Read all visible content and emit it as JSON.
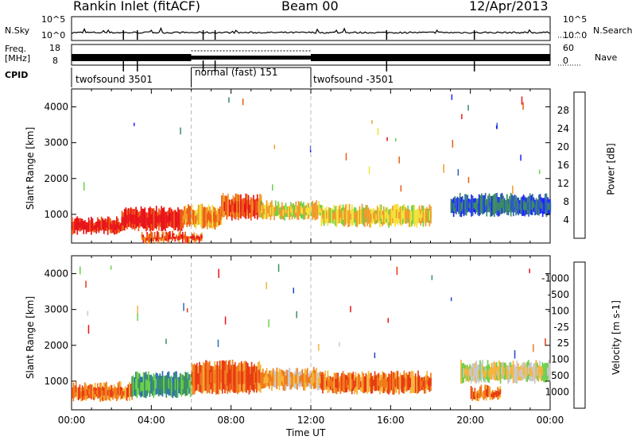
{
  "header": {
    "station": "Rankin Inlet (fitACF)",
    "beam": "Beam 00",
    "date": "12/Apr/2013"
  },
  "params": {
    "nsky_label": "N.Sky",
    "nsky_ticks": [
      "10^5",
      "10^0"
    ],
    "nsearch_label": "N.Search",
    "nsearch_ticks": [
      "10^5",
      "10^0"
    ],
    "freq_label": "Freq.",
    "freq_unit": "[MHz]",
    "freq_ticks": [
      "18",
      "8"
    ],
    "nave_label": "Nave",
    "nave_ticks": [
      "60",
      "0"
    ],
    "cpid_label": "CPID",
    "cpid_segments": [
      {
        "label": "twofsound 3501",
        "start_hour": 0,
        "end_hour": 6
      },
      {
        "label": "normal (fast) 151",
        "start_hour": 6,
        "end_hour": 12
      },
      {
        "label": "twofsound -3501",
        "start_hour": 12,
        "end_hour": 24
      }
    ]
  },
  "chart_data": [
    {
      "type": "heatmap",
      "name": "power",
      "ylabel": "Slant Range [km]",
      "yticks": [
        1000,
        2000,
        3000,
        4000
      ],
      "ylim": [
        200,
        4500
      ],
      "xlim": [
        0,
        24
      ],
      "colorbar_label": "Power [dB]",
      "colorbar_ticks": [
        "4",
        "8",
        "12",
        "16",
        "20",
        "24",
        "28"
      ],
      "colorbar_colors": [
        "#1e22ff",
        "#2d5dbf",
        "#3a8c62",
        "#6ad04a",
        "#f2e23a",
        "#f09a2a",
        "#ee5a14",
        "#e8141a"
      ],
      "bands": [
        {
          "x0": 0.0,
          "x1": 2.5,
          "r0": 500,
          "r1": 850,
          "level": 7
        },
        {
          "x0": 2.5,
          "x1": 5.5,
          "r0": 600,
          "r1": 1150,
          "level": 7
        },
        {
          "x0": 5.5,
          "x1": 7.5,
          "r0": 650,
          "r1": 1200,
          "level": 5
        },
        {
          "x0": 7.5,
          "x1": 9.5,
          "r0": 900,
          "r1": 1500,
          "level": 6
        },
        {
          "x0": 9.5,
          "x1": 12.5,
          "r0": 900,
          "r1": 1300,
          "level": 4
        },
        {
          "x0": 12.5,
          "x1": 18.0,
          "r0": 700,
          "r1": 1200,
          "level": 4
        },
        {
          "x0": 3.5,
          "x1": 6.5,
          "r0": 250,
          "r1": 450,
          "level": 6
        },
        {
          "x0": 19.0,
          "x1": 24.0,
          "r0": 1000,
          "r1": 1500,
          "level": 1
        }
      ]
    },
    {
      "type": "heatmap",
      "name": "velocity",
      "ylabel": "Slant Range [km]",
      "yticks": [
        1000,
        2000,
        3000,
        4000
      ],
      "ylim": [
        200,
        4500
      ],
      "xlim": [
        0,
        24
      ],
      "colorbar_label": "Velocity [m s-1]",
      "colorbar_ticks": [
        "1000",
        "500",
        "100",
        "25",
        "-25",
        "-100",
        "-500",
        "-1000"
      ],
      "colorbar_colors": [
        "#2244cc",
        "#2d6fb0",
        "#3a9060",
        "#6ad04a",
        "#c8c8c8",
        "#f5b43a",
        "#f07a1a",
        "#e83a12",
        "#e8141a"
      ],
      "bands": [
        {
          "x0": 0.0,
          "x1": 3.0,
          "r0": 500,
          "r1": 900,
          "level": 6
        },
        {
          "x0": 3.0,
          "x1": 6.0,
          "r0": 600,
          "r1": 1200,
          "level": 2
        },
        {
          "x0": 6.0,
          "x1": 9.5,
          "r0": 700,
          "r1": 1500,
          "level": 6
        },
        {
          "x0": 9.5,
          "x1": 12.5,
          "r0": 800,
          "r1": 1300,
          "level": 5
        },
        {
          "x0": 12.5,
          "x1": 18.0,
          "r0": 700,
          "r1": 1200,
          "level": 6
        },
        {
          "x0": 19.5,
          "x1": 24.0,
          "r0": 1000,
          "r1": 1500,
          "level": 4
        },
        {
          "x0": 20.0,
          "x1": 21.5,
          "r0": 500,
          "r1": 800,
          "level": 6
        }
      ]
    }
  ],
  "xaxis": {
    "label": "Time UT",
    "ticks": [
      "00:00",
      "04:00",
      "08:00",
      "12:00",
      "16:00",
      "20:00",
      "00:00"
    ]
  }
}
